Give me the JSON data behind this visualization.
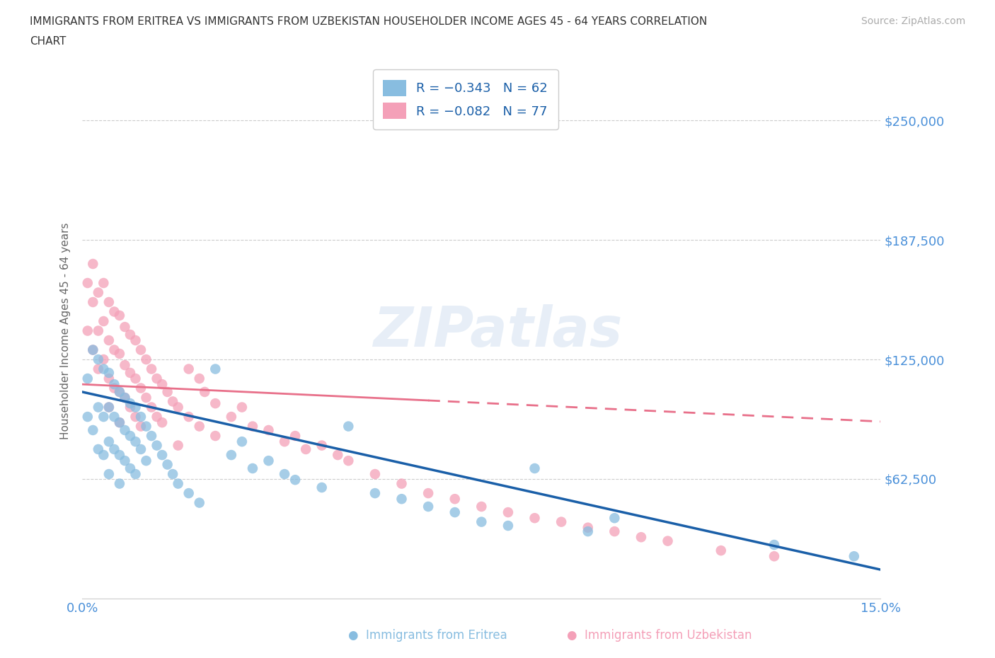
{
  "title_line1": "IMMIGRANTS FROM ERITREA VS IMMIGRANTS FROM UZBEKISTAN HOUSEHOLDER INCOME AGES 45 - 64 YEARS CORRELATION",
  "title_line2": "CHART",
  "source": "Source: ZipAtlas.com",
  "ylabel": "Householder Income Ages 45 - 64 years",
  "xlim": [
    0.0,
    0.15
  ],
  "ylim": [
    0,
    280000
  ],
  "yticks": [
    0,
    62500,
    125000,
    187500,
    250000
  ],
  "ytick_labels": [
    "",
    "$62,500",
    "$125,000",
    "$187,500",
    "$250,000"
  ],
  "xticks": [
    0.0,
    0.025,
    0.05,
    0.075,
    0.1,
    0.125,
    0.15
  ],
  "xtick_labels": [
    "0.0%",
    "",
    "",
    "",
    "",
    "",
    "15.0%"
  ],
  "watermark": "ZIPatlas",
  "eritrea_color": "#88bde0",
  "uzbekistan_color": "#f4a0b8",
  "eritrea_line_color": "#1a5fa8",
  "uzbekistan_line_color": "#e8708a",
  "background_color": "#ffffff",
  "grid_color": "#cccccc",
  "title_color": "#333333",
  "axis_label_color": "#666666",
  "tick_label_color": "#4a90d9",
  "eritrea_intercept": 108000,
  "eritrea_slope": -620000,
  "uzbekistan_intercept": 112000,
  "uzbekistan_slope": -130000,
  "eritrea_scatter_x": [
    0.001,
    0.001,
    0.002,
    0.002,
    0.003,
    0.003,
    0.003,
    0.004,
    0.004,
    0.004,
    0.005,
    0.005,
    0.005,
    0.005,
    0.006,
    0.006,
    0.006,
    0.007,
    0.007,
    0.007,
    0.007,
    0.008,
    0.008,
    0.008,
    0.009,
    0.009,
    0.009,
    0.01,
    0.01,
    0.01,
    0.011,
    0.011,
    0.012,
    0.012,
    0.013,
    0.014,
    0.015,
    0.016,
    0.017,
    0.018,
    0.02,
    0.022,
    0.025,
    0.028,
    0.03,
    0.032,
    0.035,
    0.038,
    0.04,
    0.045,
    0.05,
    0.055,
    0.06,
    0.065,
    0.07,
    0.075,
    0.08,
    0.085,
    0.095,
    0.1,
    0.13,
    0.145
  ],
  "eritrea_scatter_y": [
    115000,
    95000,
    130000,
    88000,
    125000,
    100000,
    78000,
    120000,
    95000,
    75000,
    118000,
    100000,
    82000,
    65000,
    112000,
    95000,
    78000,
    108000,
    92000,
    75000,
    60000,
    105000,
    88000,
    72000,
    102000,
    85000,
    68000,
    100000,
    82000,
    65000,
    95000,
    78000,
    90000,
    72000,
    85000,
    80000,
    75000,
    70000,
    65000,
    60000,
    55000,
    50000,
    120000,
    75000,
    82000,
    68000,
    72000,
    65000,
    62000,
    58000,
    90000,
    55000,
    52000,
    48000,
    45000,
    40000,
    38000,
    68000,
    35000,
    42000,
    28000,
    22000
  ],
  "uzbekistan_scatter_x": [
    0.001,
    0.001,
    0.002,
    0.002,
    0.002,
    0.003,
    0.003,
    0.003,
    0.004,
    0.004,
    0.004,
    0.005,
    0.005,
    0.005,
    0.005,
    0.006,
    0.006,
    0.006,
    0.007,
    0.007,
    0.007,
    0.007,
    0.008,
    0.008,
    0.008,
    0.009,
    0.009,
    0.009,
    0.01,
    0.01,
    0.01,
    0.011,
    0.011,
    0.011,
    0.012,
    0.012,
    0.013,
    0.013,
    0.014,
    0.014,
    0.015,
    0.015,
    0.016,
    0.017,
    0.018,
    0.018,
    0.02,
    0.02,
    0.022,
    0.022,
    0.023,
    0.025,
    0.025,
    0.028,
    0.03,
    0.032,
    0.035,
    0.038,
    0.04,
    0.042,
    0.045,
    0.048,
    0.05,
    0.055,
    0.06,
    0.065,
    0.07,
    0.075,
    0.08,
    0.085,
    0.09,
    0.095,
    0.1,
    0.105,
    0.11,
    0.12,
    0.13
  ],
  "uzbekistan_scatter_y": [
    165000,
    140000,
    175000,
    155000,
    130000,
    160000,
    140000,
    120000,
    165000,
    145000,
    125000,
    155000,
    135000,
    115000,
    100000,
    150000,
    130000,
    110000,
    148000,
    128000,
    108000,
    92000,
    142000,
    122000,
    105000,
    138000,
    118000,
    100000,
    135000,
    115000,
    95000,
    130000,
    110000,
    90000,
    125000,
    105000,
    120000,
    100000,
    115000,
    95000,
    112000,
    92000,
    108000,
    103000,
    100000,
    80000,
    120000,
    95000,
    115000,
    90000,
    108000,
    102000,
    85000,
    95000,
    100000,
    90000,
    88000,
    82000,
    85000,
    78000,
    80000,
    75000,
    72000,
    65000,
    60000,
    55000,
    52000,
    48000,
    45000,
    42000,
    40000,
    37000,
    35000,
    32000,
    30000,
    25000,
    22000
  ]
}
